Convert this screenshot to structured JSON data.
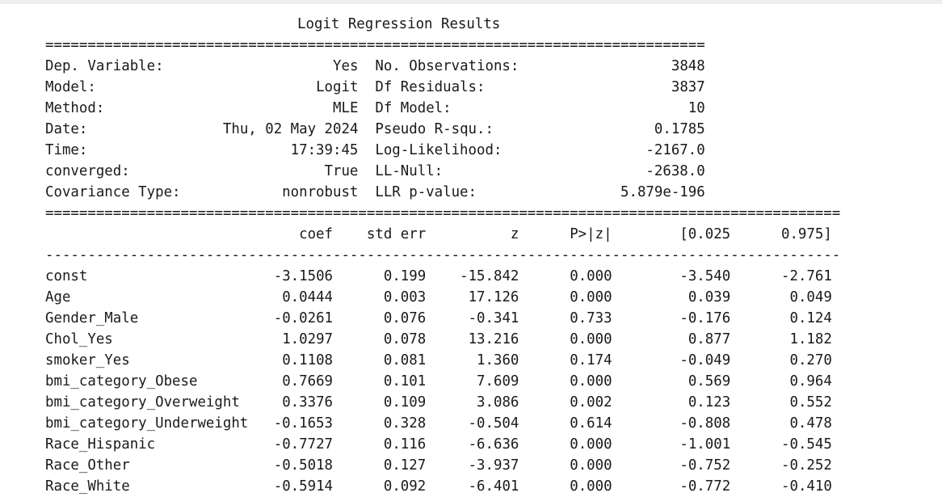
{
  "title": "Logit Regression Results",
  "header_left": [
    {
      "label": "Dep. Variable:",
      "value": "Yes"
    },
    {
      "label": "Model:",
      "value": "Logit"
    },
    {
      "label": "Method:",
      "value": "MLE"
    },
    {
      "label": "Date:",
      "value": "Thu, 02 May 2024"
    },
    {
      "label": "Time:",
      "value": "17:39:45"
    },
    {
      "label": "converged:",
      "value": "True"
    },
    {
      "label": "Covariance Type:",
      "value": "nonrobust"
    }
  ],
  "header_right": [
    {
      "label": "No. Observations:",
      "value": "3848"
    },
    {
      "label": "Df Residuals:",
      "value": "3837"
    },
    {
      "label": "Df Model:",
      "value": "10"
    },
    {
      "label": "Pseudo R-squ.:",
      "value": "0.1785"
    },
    {
      "label": "Log-Likelihood:",
      "value": "-2167.0"
    },
    {
      "label": "LL-Null:",
      "value": "-2638.0"
    },
    {
      "label": "LLR p-value:",
      "value": "5.879e-196"
    }
  ],
  "columns": [
    "coef",
    "std err",
    "z",
    "P>|z|",
    "[0.025",
    "0.975]"
  ],
  "rows": [
    {
      "name": "const",
      "values": [
        "-3.1506",
        "0.199",
        "-15.842",
        "0.000",
        "-3.540",
        "-2.761"
      ]
    },
    {
      "name": "Age",
      "values": [
        "0.0444",
        "0.003",
        "17.126",
        "0.000",
        "0.039",
        "0.049"
      ]
    },
    {
      "name": "Gender_Male",
      "values": [
        "-0.0261",
        "0.076",
        "-0.341",
        "0.733",
        "-0.176",
        "0.124"
      ]
    },
    {
      "name": "Chol_Yes",
      "values": [
        "1.0297",
        "0.078",
        "13.216",
        "0.000",
        "0.877",
        "1.182"
      ]
    },
    {
      "name": "smoker_Yes",
      "values": [
        "0.1108",
        "0.081",
        "1.360",
        "0.174",
        "-0.049",
        "0.270"
      ]
    },
    {
      "name": "bmi_category_Obese",
      "values": [
        "0.7669",
        "0.101",
        "7.609",
        "0.000",
        "0.569",
        "0.964"
      ]
    },
    {
      "name": "bmi_category_Overweight",
      "values": [
        "0.3376",
        "0.109",
        "3.086",
        "0.002",
        "0.123",
        "0.552"
      ]
    },
    {
      "name": "bmi_category_Underweight",
      "values": [
        "-0.1653",
        "0.328",
        "-0.504",
        "0.614",
        "-0.808",
        "0.478"
      ]
    },
    {
      "name": "Race_Hispanic",
      "values": [
        "-0.7727",
        "0.116",
        "-6.636",
        "0.000",
        "-1.001",
        "-0.545"
      ]
    },
    {
      "name": "Race_Other",
      "values": [
        "-0.5018",
        "0.127",
        "-3.937",
        "0.000",
        "-0.752",
        "-0.252"
      ]
    },
    {
      "name": "Race_White",
      "values": [
        "-0.5914",
        "0.092",
        "-6.401",
        "0.000",
        "-0.772",
        "-0.410"
      ]
    }
  ]
}
